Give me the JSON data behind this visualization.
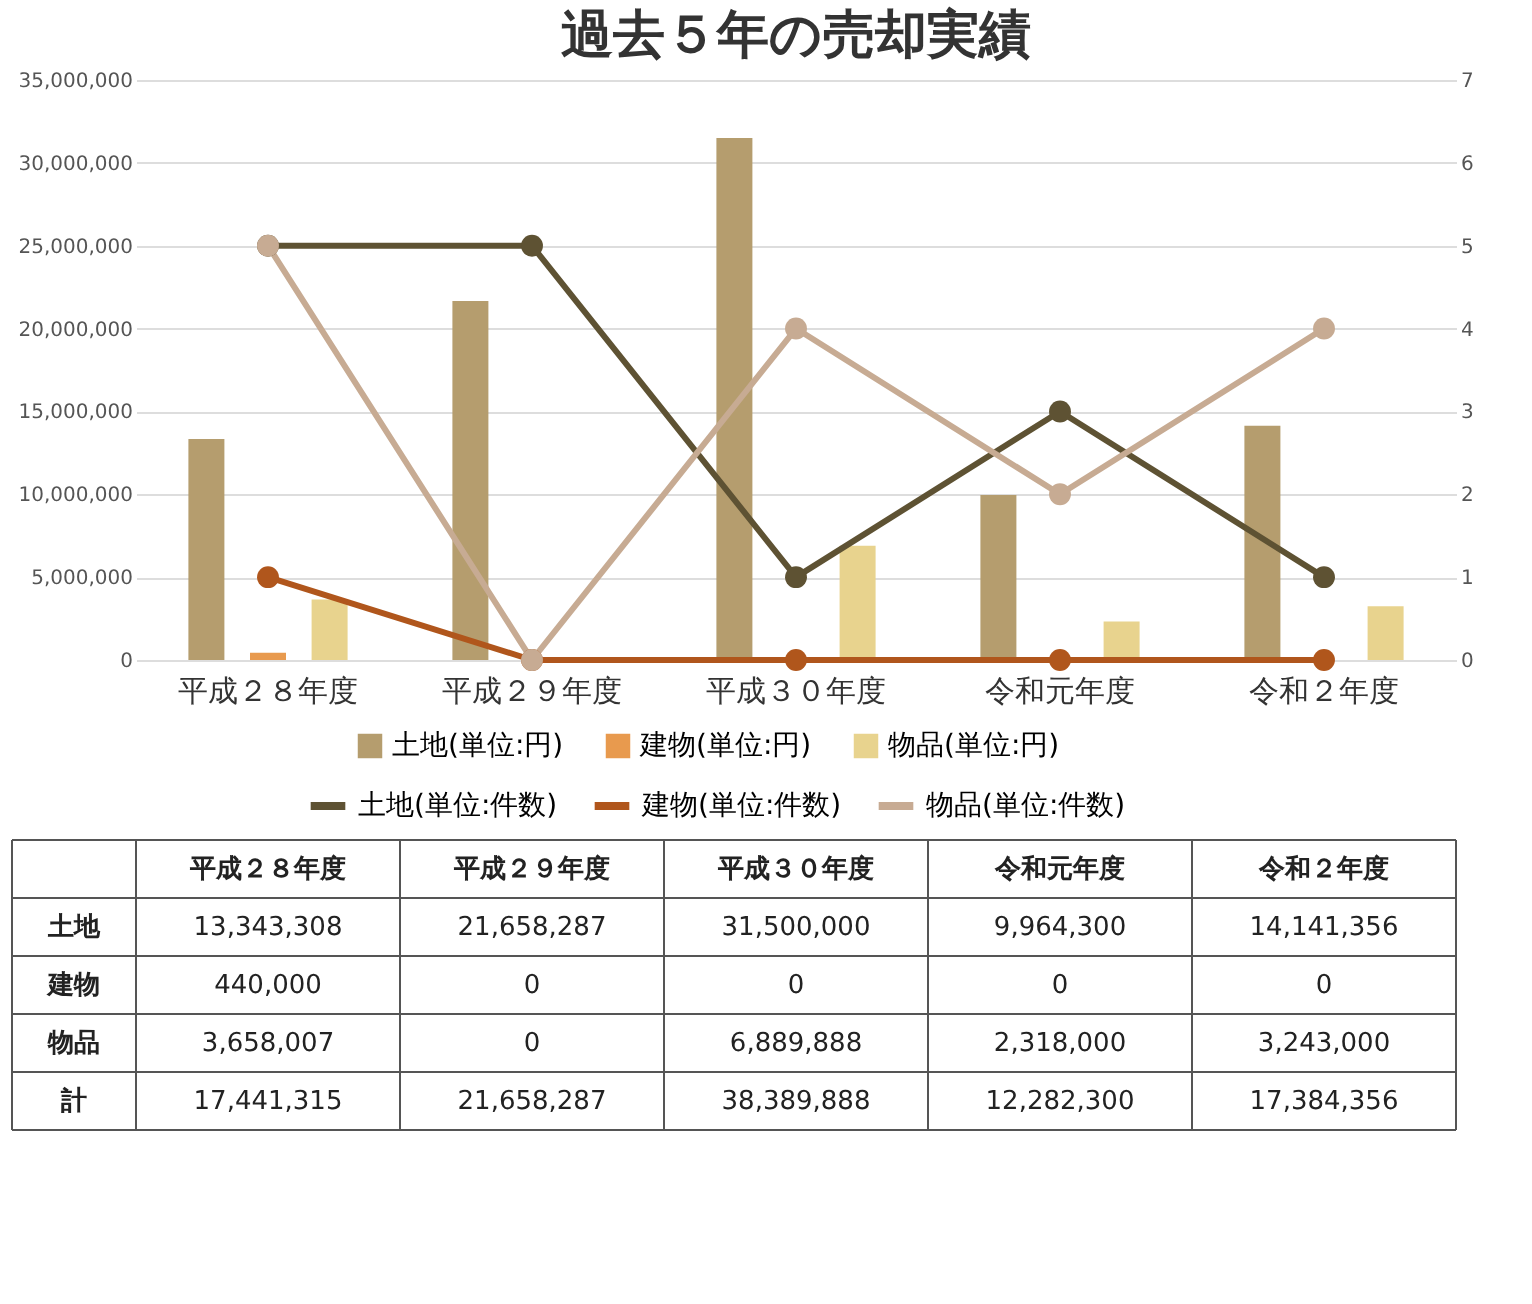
{
  "chart_data": {
    "type": "bar",
    "title": "過去５年の売却実績",
    "categories": [
      "平成２８年度",
      "平成２９年度",
      "平成３０年度",
      "令和元年度",
      "令和２年度"
    ],
    "series": [
      {
        "name": "土地(単位:円)",
        "color": "#b59d6e",
        "values": [
          13343308,
          21658287,
          31500000,
          9964300,
          14141356
        ],
        "value_labels": [
          "13,343,308",
          "21,658,287",
          "31,500,000",
          "9,964,300",
          "14,141,356"
        ]
      },
      {
        "name": "建物(単位:円)",
        "color": "#e89a4e",
        "values": [
          440000,
          0,
          0,
          0,
          0
        ],
        "value_labels": [
          "440,000",
          "0",
          "0",
          "0",
          "0"
        ]
      },
      {
        "name": "物品(単位:円)",
        "color": "#e8d38e",
        "values": [
          3658007,
          0,
          6889888,
          2318000,
          3243000
        ],
        "value_labels": [
          "3,658,007",
          "0",
          "6,889,888",
          "2,318,000",
          "3,243,000"
        ]
      },
      {
        "name": "土地(単位:件数)",
        "type": "line",
        "axis": "y2",
        "color": "#5e5233",
        "values": [
          5,
          5,
          1,
          3,
          1
        ]
      },
      {
        "name": "建物(単位:件数)",
        "type": "line",
        "axis": "y2",
        "color": "#b0561c",
        "values": [
          1,
          0,
          0,
          0,
          0
        ]
      },
      {
        "name": "物品(単位:件数)",
        "type": "line",
        "axis": "y2",
        "color": "#c7ab93",
        "values": [
          5,
          0,
          4,
          2,
          4
        ]
      }
    ],
    "ylim": [
      0,
      35000000
    ],
    "yticks": [
      0,
      {
        "value": 5000000,
        "label": "5,000,000"
      },
      {
        "value": 10000000,
        "label": "10,000,000"
      },
      {
        "value": 15000000,
        "label": "15,000,000"
      },
      {
        "value": 20000000,
        "label": "20,000,000"
      },
      {
        "value": 25000000,
        "label": "25,000,000"
      },
      {
        "value": 30000000,
        "label": "30,000,000"
      },
      {
        "value": 35000000,
        "label": "35,000,000"
      }
    ],
    "y2lim": [
      0,
      7
    ],
    "y2ticks": [
      0,
      1,
      2,
      3,
      4,
      5,
      6,
      7
    ],
    "grid": "y",
    "legend": "bottom",
    "marker": "circle",
    "line_style": "solid",
    "annotations": [
      "土地",
      "建物",
      "物品",
      "計",
      "17,441,315",
      "21,658,287",
      "38,389,888",
      "12,282,300",
      "17,384,356"
    ]
  }
}
